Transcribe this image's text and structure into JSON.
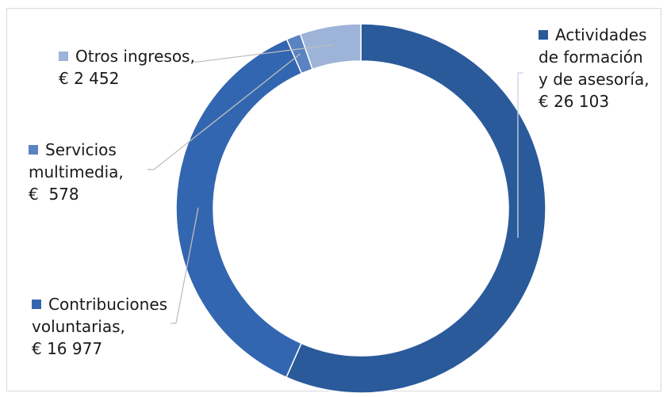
{
  "chart_data": {
    "type": "pie",
    "donut": true,
    "currency": "€",
    "slices": [
      {
        "label_lines": [
          "Actividades",
          "de formación",
          "y de asesoría,"
        ],
        "value_text": "€ 26 103",
        "value": 26103,
        "color": "#2a5a9a"
      },
      {
        "label_lines": [
          "Contribuciones",
          "voluntarias,"
        ],
        "value_text": "€ 16 977",
        "value": 16977,
        "color": "#3366b0"
      },
      {
        "label_lines": [
          "Servicios",
          "multimedia,"
        ],
        "value_text": "€  578",
        "value": 578,
        "color": "#5b82c2"
      },
      {
        "label_lines": [
          "Otros ingresos,"
        ],
        "value_text": "€ 2 452",
        "value": 2452,
        "color": "#9db3d8"
      }
    ],
    "legend": "beside slices"
  }
}
